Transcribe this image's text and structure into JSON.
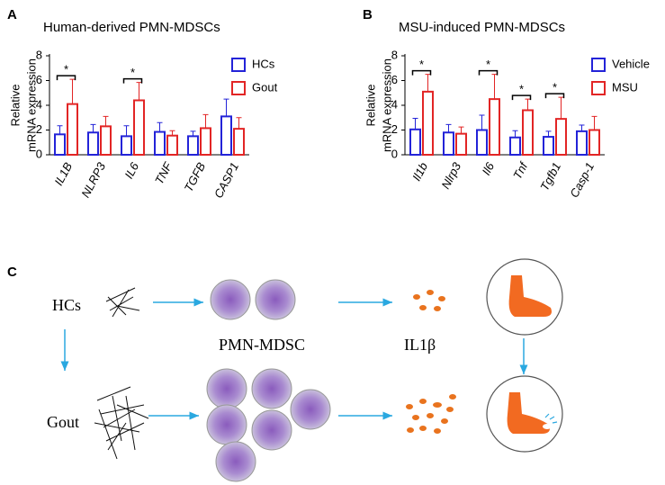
{
  "chart_data": [
    {
      "type": "bar",
      "panel": "A",
      "title": "Human-derived PMN-MDSCs",
      "ylabel": [
        "Relative",
        "mRNA expression"
      ],
      "categories": [
        "IL1B",
        "NLRP3",
        "IL6",
        "TNF",
        "TGFB",
        "CASP1"
      ],
      "series": [
        {
          "name": "HCs",
          "color": "#2323d8",
          "values": [
            1.65,
            1.8,
            1.5,
            1.85,
            1.5,
            3.1
          ],
          "errors": [
            0.7,
            0.65,
            0.85,
            0.75,
            0.4,
            1.4
          ]
        },
        {
          "name": "Gout",
          "color": "#e22525",
          "values": [
            4.1,
            2.3,
            4.4,
            1.55,
            2.15,
            2.1
          ],
          "errors": [
            2.0,
            0.8,
            1.45,
            0.4,
            1.1,
            0.9
          ]
        }
      ],
      "ylim": [
        0,
        8
      ],
      "yticks": [
        0,
        2,
        4,
        6,
        8
      ],
      "legend": "upper right",
      "significance": [
        {
          "category": "IL1B",
          "label": "*"
        },
        {
          "category": "IL6",
          "label": "*"
        }
      ]
    },
    {
      "type": "bar",
      "panel": "B",
      "title": "MSU-induced PMN-MDSCs",
      "ylabel": [
        "Relative",
        "mRNA expression"
      ],
      "categories": [
        "Il1b",
        "Nlrp3",
        "Il6",
        "Tnf",
        "Tgfb1",
        "Casp-1"
      ],
      "series": [
        {
          "name": "Vehicle",
          "color": "#2323d8",
          "values": [
            2.05,
            1.8,
            2.0,
            1.4,
            1.45,
            1.9
          ],
          "errors": [
            0.9,
            0.65,
            1.2,
            0.55,
            0.45,
            0.5
          ]
        },
        {
          "name": "MSU",
          "color": "#e22525",
          "values": [
            5.1,
            1.7,
            4.5,
            3.6,
            2.9,
            2.0
          ],
          "errors": [
            1.4,
            0.55,
            2.0,
            0.9,
            1.75,
            1.1
          ]
        }
      ],
      "ylim": [
        0,
        8
      ],
      "yticks": [
        0,
        2,
        4,
        6,
        8
      ],
      "legend": "upper right",
      "significance": [
        {
          "category": "Il1b",
          "label": "*"
        },
        {
          "category": "Il6",
          "label": "*"
        },
        {
          "category": "Tnf",
          "label": "*"
        },
        {
          "category": "Tgfb1",
          "label": "*"
        }
      ]
    }
  ],
  "diagram": {
    "panel": "C",
    "groups": [
      "HCs",
      "Gout"
    ],
    "cell_label": "PMN-MDSC",
    "cytokine_label": "IL1β"
  }
}
